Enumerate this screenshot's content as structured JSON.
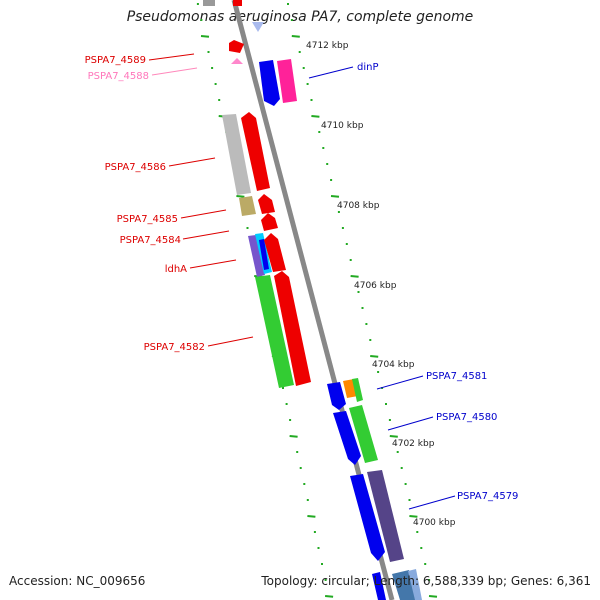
{
  "title": "Pseudomonas aeruginosa PA7, complete genome",
  "footer": {
    "accession": "Accession: NC_009656",
    "stats": "Topology: circular; Length: 6,588,339 bp; Genes: 6,361"
  },
  "scale_labels": [
    "4712 kbp",
    "4710 kbp",
    "4708 kbp",
    "4706 kbp",
    "4704 kbp",
    "4702 kbp",
    "4700 kbp"
  ],
  "gene_labels": [
    {
      "text": "PSPA7_4589",
      "color": "#dd0000"
    },
    {
      "text": "PSPA7_4588",
      "color": "#ff77bb"
    },
    {
      "text": "dinP",
      "color": "#0000cc"
    },
    {
      "text": "PSPA7_4586",
      "color": "#dd0000"
    },
    {
      "text": "PSPA7_4585",
      "color": "#dd0000"
    },
    {
      "text": "PSPA7_4584",
      "color": "#dd0000"
    },
    {
      "text": "ldhA",
      "color": "#dd0000"
    },
    {
      "text": "PSPA7_4582",
      "color": "#dd0000"
    },
    {
      "text": "PSPA7_4581",
      "color": "#0000cc"
    },
    {
      "text": "PSPA7_4580",
      "color": "#0000cc"
    },
    {
      "text": "PSPA7_4579",
      "color": "#0000cc"
    }
  ],
  "colors": {
    "backbone": "#888888",
    "tick_green": "#22aa22",
    "forward_red": "#ee0000",
    "reverse_blue": "#0000ee",
    "cds_green": "#33cc33",
    "grey": "#bbbbbb",
    "olive": "#bbaa66",
    "magenta": "#ff2299",
    "purple": "#554488",
    "orange": "#ff8800"
  }
}
